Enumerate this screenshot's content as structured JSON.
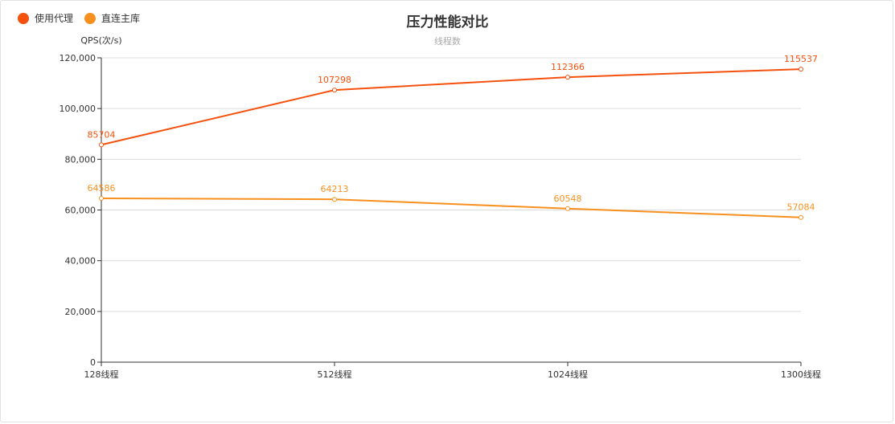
{
  "chart_data": {
    "type": "line",
    "title": "压力性能对比",
    "subtitle": "线程数",
    "ylabel": "QPS(次/s)",
    "xlabel": "",
    "categories": [
      "128线程",
      "512线程",
      "1024线程",
      "1300线程"
    ],
    "ylim": [
      0,
      120000
    ],
    "yticks": [
      0,
      20000,
      40000,
      60000,
      80000,
      100000,
      120000
    ],
    "ytick_labels": [
      "0",
      "20,000",
      "40,000",
      "60,000",
      "80,000",
      "100,000",
      "120,000"
    ],
    "grid": true,
    "legend_position": "top-left",
    "series": [
      {
        "name": "使用代理",
        "color": "#f4510e",
        "values": [
          85704,
          107298,
          112366,
          115537
        ]
      },
      {
        "name": "直连主库",
        "color": "#f7901e",
        "values": [
          64586,
          64213,
          60548,
          57084
        ]
      }
    ]
  }
}
